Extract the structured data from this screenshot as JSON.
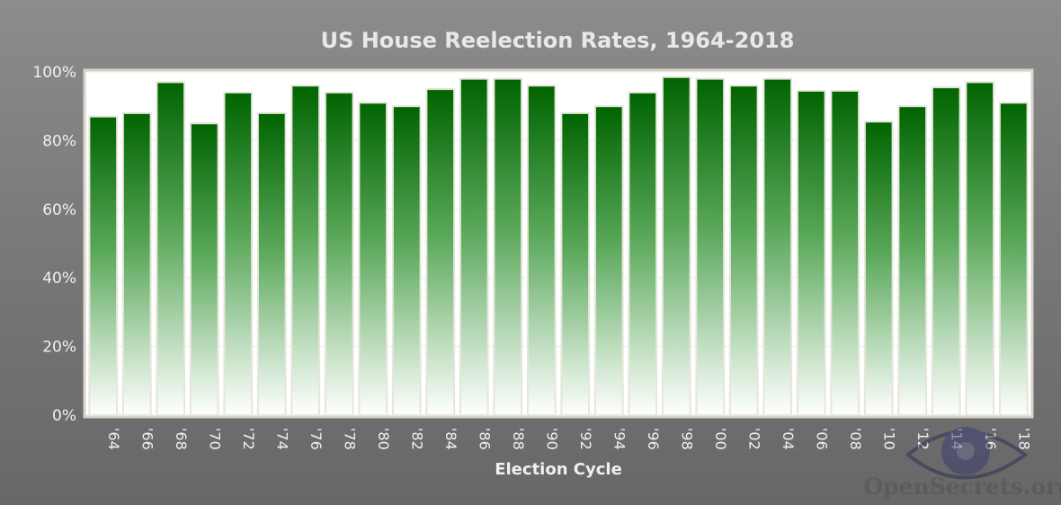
{
  "chart_data": {
    "type": "bar",
    "title": "US House Reelection Rates, 1964-2018",
    "xlabel": "Election Cycle",
    "ylabel": "",
    "categories": [
      "'64",
      "'66",
      "'68",
      "'70",
      "'72",
      "'74",
      "'76",
      "'78",
      "'80",
      "'82",
      "'84",
      "'86",
      "'88",
      "'90",
      "'92",
      "'94",
      "'96",
      "'98",
      "'00",
      "'02",
      "'04",
      "'06",
      "'08",
      "'10",
      "'12",
      "'14",
      "'16",
      "'18"
    ],
    "values": [
      87,
      88,
      97,
      85,
      94,
      88,
      96,
      94,
      91,
      90,
      95,
      98,
      98,
      96,
      88,
      90,
      94,
      98.5,
      98,
      96,
      98,
      94.5,
      94.5,
      85.5,
      90,
      95.5,
      97,
      91
    ],
    "ylim": [
      0,
      100
    ],
    "yticks": [
      "0%",
      "20%",
      "40%",
      "60%",
      "80%",
      "100%"
    ],
    "grid": true,
    "legend": "none"
  },
  "watermark": {
    "text": "OpenSecrets.org",
    "icon": "eye-logo-icon"
  },
  "colors": {
    "bar_top": "#006400",
    "bar_bottom": "#ffffff",
    "bar_border": "#e6e6dc",
    "plot_bg": "#ffffff",
    "plot_border": "#d8d3c8"
  }
}
